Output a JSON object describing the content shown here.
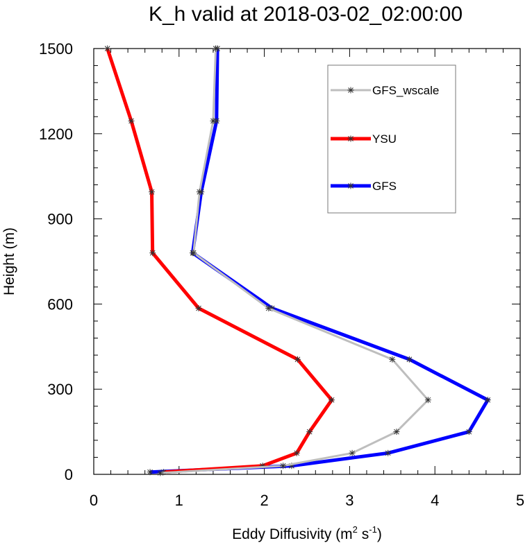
{
  "chart_data": {
    "type": "line",
    "title": "K_h valid at 2018-03-02_02:00:00",
    "xlabel_main": "Eddy Diffusivity (m",
    "xlabel_sup1": "2",
    "xlabel_mid": " s",
    "xlabel_sup2": "-1",
    "xlabel_end": ")",
    "ylabel": "Height (m)",
    "xlim": [
      0,
      5
    ],
    "ylim": [
      0,
      1500
    ],
    "xticks": [
      "0",
      "1",
      "2",
      "3",
      "4",
      "5"
    ],
    "yticks": [
      "0",
      "300",
      "600",
      "900",
      "1200",
      "1500"
    ],
    "legend_position": "top-right",
    "grid": false,
    "series": [
      {
        "name": "GFS_wscale",
        "color": "#bebebe",
        "points": [
          [
            0.78,
            5
          ],
          [
            2.22,
            30
          ],
          [
            3.03,
            75
          ],
          [
            3.55,
            150
          ],
          [
            3.92,
            262
          ],
          [
            3.5,
            405
          ],
          [
            2.05,
            585
          ],
          [
            1.17,
            780
          ],
          [
            1.24,
            995
          ],
          [
            1.4,
            1245
          ],
          [
            1.43,
            1500
          ]
        ]
      },
      {
        "name": "YSU",
        "color": "#ff0000",
        "points": [
          [
            0.82,
            8
          ],
          [
            1.98,
            30
          ],
          [
            2.38,
            75
          ],
          [
            2.53,
            150
          ],
          [
            2.79,
            262
          ],
          [
            2.39,
            405
          ],
          [
            1.23,
            585
          ],
          [
            0.69,
            780
          ],
          [
            0.68,
            995
          ],
          [
            0.44,
            1245
          ],
          [
            0.16,
            1500
          ]
        ]
      },
      {
        "name": "GFS",
        "color": "#0000ff",
        "points": [
          [
            0.66,
            8
          ],
          [
            2.32,
            30
          ],
          [
            3.45,
            75
          ],
          [
            4.4,
            150
          ],
          [
            4.62,
            262
          ],
          [
            3.7,
            405
          ],
          [
            2.09,
            585
          ],
          [
            1.16,
            780
          ],
          [
            1.26,
            995
          ],
          [
            1.44,
            1245
          ],
          [
            1.45,
            1500
          ]
        ]
      }
    ]
  }
}
